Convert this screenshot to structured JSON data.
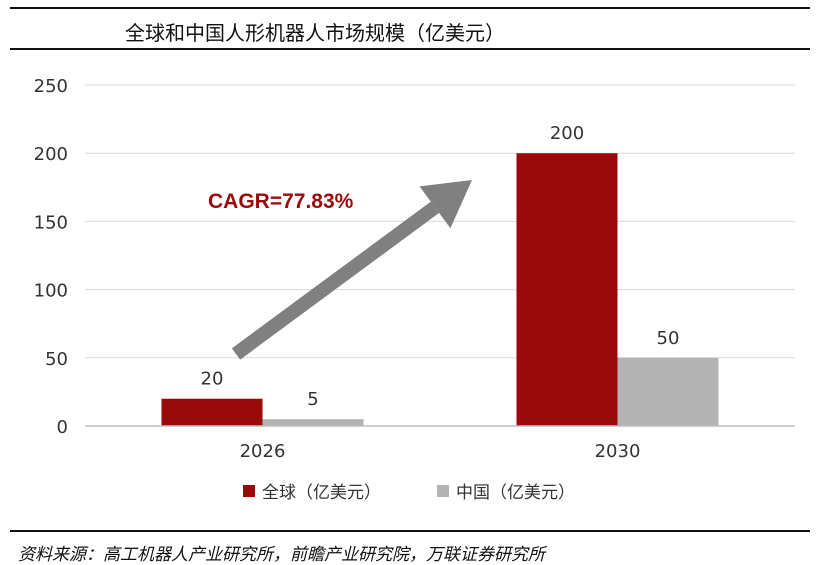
{
  "title": "全球和中国人形机器人市场规模（亿美元）",
  "source": "资料来源：高工机器人产业研究所，前瞻产业研究院，万联证券研究所",
  "chart_data": {
    "type": "bar",
    "title": "全球和中国人形机器人市场规模（亿美元）",
    "categories": [
      "2026",
      "2030"
    ],
    "series": [
      {
        "name": "全球（亿美元）",
        "values": [
          20,
          200
        ],
        "color": "#9b0a0a"
      },
      {
        "name": "中国（亿美元）",
        "values": [
          5,
          50
        ],
        "color": "#b3b3b3"
      }
    ],
    "ylim": [
      0,
      250
    ],
    "yticks": [
      0,
      50,
      100,
      150,
      200,
      250
    ],
    "grid": true,
    "legend": "bottom",
    "annotation": {
      "text": "CAGR=77.83%",
      "color": "#9b0a0a",
      "arrow_color": "#808080"
    }
  }
}
